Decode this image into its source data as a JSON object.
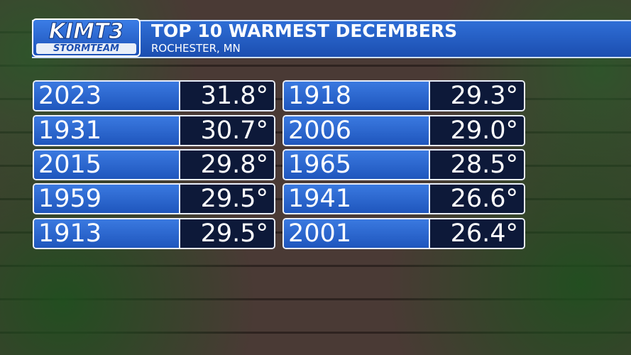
{
  "header": {
    "logo": "KIMT3",
    "logo_sub": "STORMTEAM",
    "title": "TOP 10 WARMEST DECEMBERS",
    "subtitle": "ROCHESTER, MN"
  },
  "table": {
    "columns": [
      [
        [
          "2023",
          "31.8°"
        ],
        [
          "1931",
          "30.7°"
        ],
        [
          "2015",
          "29.8°"
        ],
        [
          "1959",
          "29.5°"
        ],
        [
          "1913",
          "29.5°"
        ]
      ],
      [
        [
          "1918",
          "29.3°"
        ],
        [
          "2006",
          "29.0°"
        ],
        [
          "1965",
          "28.5°"
        ],
        [
          "1941",
          "26.6°"
        ],
        [
          "2001",
          "26.4°"
        ]
      ]
    ]
  }
}
